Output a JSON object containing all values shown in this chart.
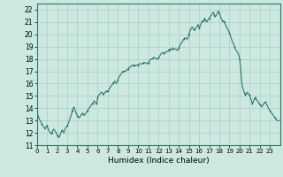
{
  "xlabel": "Humidex (Indice chaleur)",
  "xlim": [
    0,
    24
  ],
  "ylim": [
    11,
    22.5
  ],
  "yticks": [
    11,
    12,
    13,
    14,
    15,
    16,
    17,
    18,
    19,
    20,
    21,
    22
  ],
  "xticks": [
    0,
    1,
    2,
    3,
    4,
    5,
    6,
    7,
    8,
    9,
    10,
    11,
    12,
    13,
    14,
    15,
    16,
    17,
    18,
    19,
    20,
    21,
    22,
    23
  ],
  "bg_color": "#cce8e0",
  "grid_color_major": "#aacfc8",
  "grid_color_minor": "#bcddd6",
  "line_color": "#1a6b5a",
  "x": [
    0.0,
    0.08,
    0.17,
    0.25,
    0.33,
    0.42,
    0.5,
    0.58,
    0.67,
    0.75,
    0.83,
    0.92,
    1.0,
    1.08,
    1.17,
    1.25,
    1.33,
    1.42,
    1.5,
    1.58,
    1.67,
    1.75,
    1.83,
    1.92,
    2.0,
    2.08,
    2.17,
    2.25,
    2.33,
    2.42,
    2.5,
    2.58,
    2.67,
    2.75,
    2.83,
    2.92,
    3.0,
    3.08,
    3.17,
    3.25,
    3.33,
    3.42,
    3.5,
    3.58,
    3.67,
    3.75,
    3.83,
    3.92,
    4.0,
    4.08,
    4.17,
    4.25,
    4.33,
    4.42,
    4.5,
    4.58,
    4.67,
    4.75,
    4.83,
    4.92,
    5.0,
    5.08,
    5.17,
    5.25,
    5.33,
    5.42,
    5.5,
    5.58,
    5.67,
    5.75,
    5.83,
    5.92,
    6.0,
    6.08,
    6.17,
    6.25,
    6.33,
    6.42,
    6.5,
    6.58,
    6.67,
    6.75,
    6.83,
    6.92,
    7.0,
    7.08,
    7.17,
    7.25,
    7.33,
    7.42,
    7.5,
    7.58,
    7.67,
    7.75,
    7.83,
    7.92,
    8.0,
    8.08,
    8.17,
    8.25,
    8.33,
    8.42,
    8.5,
    8.58,
    8.67,
    8.75,
    8.83,
    8.92,
    9.0,
    9.08,
    9.17,
    9.25,
    9.33,
    9.42,
    9.5,
    9.58,
    9.67,
    9.75,
    9.83,
    9.92,
    10.0,
    10.08,
    10.17,
    10.25,
    10.33,
    10.42,
    10.5,
    10.58,
    10.67,
    10.75,
    10.83,
    10.92,
    11.0,
    11.08,
    11.17,
    11.25,
    11.33,
    11.42,
    11.5,
    11.58,
    11.67,
    11.75,
    11.83,
    11.92,
    12.0,
    12.08,
    12.17,
    12.25,
    12.33,
    12.42,
    12.5,
    12.58,
    12.67,
    12.75,
    12.83,
    12.92,
    13.0,
    13.08,
    13.17,
    13.25,
    13.33,
    13.42,
    13.5,
    13.58,
    13.67,
    13.75,
    13.83,
    13.92,
    14.0,
    14.08,
    14.17,
    14.25,
    14.33,
    14.42,
    14.5,
    14.58,
    14.67,
    14.75,
    14.83,
    14.92,
    15.0,
    15.08,
    15.17,
    15.25,
    15.33,
    15.42,
    15.5,
    15.58,
    15.67,
    15.75,
    15.83,
    15.92,
    16.0,
    16.08,
    16.17,
    16.25,
    16.33,
    16.42,
    16.5,
    16.58,
    16.67,
    16.75,
    16.83,
    16.92,
    17.0,
    17.08,
    17.17,
    17.25,
    17.33,
    17.42,
    17.5,
    17.58,
    17.67,
    17.75,
    17.83,
    17.92,
    18.0,
    18.08,
    18.17,
    18.25,
    18.33,
    18.42,
    18.5,
    18.58,
    18.67,
    18.75,
    18.83,
    18.92,
    19.0,
    19.08,
    19.17,
    19.25,
    19.33,
    19.42,
    19.5,
    19.58,
    19.67,
    19.75,
    19.83,
    19.92,
    20.0,
    20.08,
    20.17,
    20.25,
    20.33,
    20.42,
    20.5,
    20.58,
    20.67,
    20.75,
    20.83,
    20.92,
    21.0,
    21.08,
    21.17,
    21.25,
    21.33,
    21.42,
    21.5,
    21.58,
    21.67,
    21.75,
    21.83,
    21.92,
    22.0,
    22.08,
    22.17,
    22.25,
    22.33,
    22.42,
    22.5,
    22.58,
    22.67,
    22.75,
    22.83,
    22.92,
    23.0,
    23.08,
    23.17,
    23.25,
    23.33,
    23.42,
    23.5,
    23.58,
    23.67,
    23.75,
    23.83,
    23.92
  ],
  "y": [
    13.7,
    13.5,
    13.3,
    13.1,
    13.0,
    12.9,
    12.7,
    12.6,
    12.5,
    12.4,
    12.3,
    12.5,
    12.6,
    12.4,
    12.2,
    12.1,
    12.0,
    11.9,
    12.0,
    12.2,
    12.3,
    12.2,
    12.1,
    12.0,
    11.8,
    11.7,
    11.6,
    11.7,
    11.9,
    12.1,
    12.2,
    12.1,
    12.0,
    12.2,
    12.4,
    12.5,
    12.6,
    12.7,
    12.9,
    13.1,
    13.3,
    13.5,
    13.8,
    14.0,
    14.1,
    13.9,
    13.7,
    13.5,
    13.4,
    13.3,
    13.2,
    13.3,
    13.4,
    13.5,
    13.6,
    13.5,
    13.4,
    13.5,
    13.6,
    13.7,
    13.8,
    13.9,
    14.0,
    14.1,
    14.2,
    14.3,
    14.4,
    14.5,
    14.6,
    14.5,
    14.4,
    14.3,
    14.9,
    15.0,
    15.1,
    15.2,
    15.3,
    15.3,
    15.2,
    15.1,
    15.2,
    15.3,
    15.4,
    15.3,
    15.4,
    15.5,
    15.6,
    15.7,
    15.8,
    15.9,
    16.0,
    16.1,
    16.2,
    16.1,
    16.0,
    16.1,
    16.3,
    16.5,
    16.6,
    16.7,
    16.8,
    16.9,
    17.0,
    17.0,
    17.0,
    17.0,
    17.1,
    17.1,
    17.2,
    17.3,
    17.3,
    17.4,
    17.4,
    17.5,
    17.5,
    17.5,
    17.4,
    17.5,
    17.5,
    17.5,
    17.5,
    17.6,
    17.6,
    17.6,
    17.6,
    17.6,
    17.7,
    17.7,
    17.7,
    17.7,
    17.6,
    17.6,
    17.7,
    17.8,
    17.9,
    18.0,
    18.0,
    18.0,
    18.1,
    18.1,
    18.1,
    18.0,
    18.0,
    18.0,
    18.1,
    18.2,
    18.3,
    18.4,
    18.5,
    18.5,
    18.5,
    18.4,
    18.5,
    18.6,
    18.6,
    18.6,
    18.7,
    18.8,
    18.8,
    18.7,
    18.8,
    18.9,
    18.8,
    18.8,
    18.8,
    18.8,
    18.7,
    18.7,
    18.9,
    19.0,
    19.2,
    19.3,
    19.4,
    19.5,
    19.6,
    19.7,
    19.7,
    19.7,
    19.6,
    19.7,
    20.0,
    20.2,
    20.4,
    20.5,
    20.6,
    20.5,
    20.4,
    20.3,
    20.5,
    20.6,
    20.7,
    20.8,
    20.5,
    20.6,
    20.8,
    21.0,
    21.1,
    21.0,
    21.2,
    21.3,
    21.1,
    21.0,
    21.1,
    21.2,
    21.3,
    21.4,
    21.5,
    21.6,
    21.7,
    21.8,
    21.6,
    21.4,
    21.5,
    21.6,
    21.8,
    21.9,
    21.7,
    21.5,
    21.3,
    21.2,
    21.0,
    21.1,
    21.0,
    20.8,
    20.7,
    20.5,
    20.4,
    20.3,
    20.1,
    19.9,
    19.7,
    19.5,
    19.3,
    19.2,
    19.0,
    18.8,
    18.7,
    18.6,
    18.5,
    18.3,
    18.0,
    17.5,
    16.5,
    15.8,
    15.6,
    15.4,
    15.2,
    15.0,
    15.2,
    15.3,
    15.2,
    15.1,
    15.1,
    14.8,
    14.6,
    14.3,
    14.5,
    14.7,
    14.8,
    14.9,
    14.7,
    14.6,
    14.5,
    14.4,
    14.3,
    14.2,
    14.1,
    14.2,
    14.3,
    14.4,
    14.5,
    14.4,
    14.3,
    14.2,
    14.0,
    13.9,
    13.8,
    13.7,
    13.6,
    13.5,
    13.4,
    13.3,
    13.2,
    13.1,
    13.0,
    13.0,
    13.0,
    13.0
  ]
}
